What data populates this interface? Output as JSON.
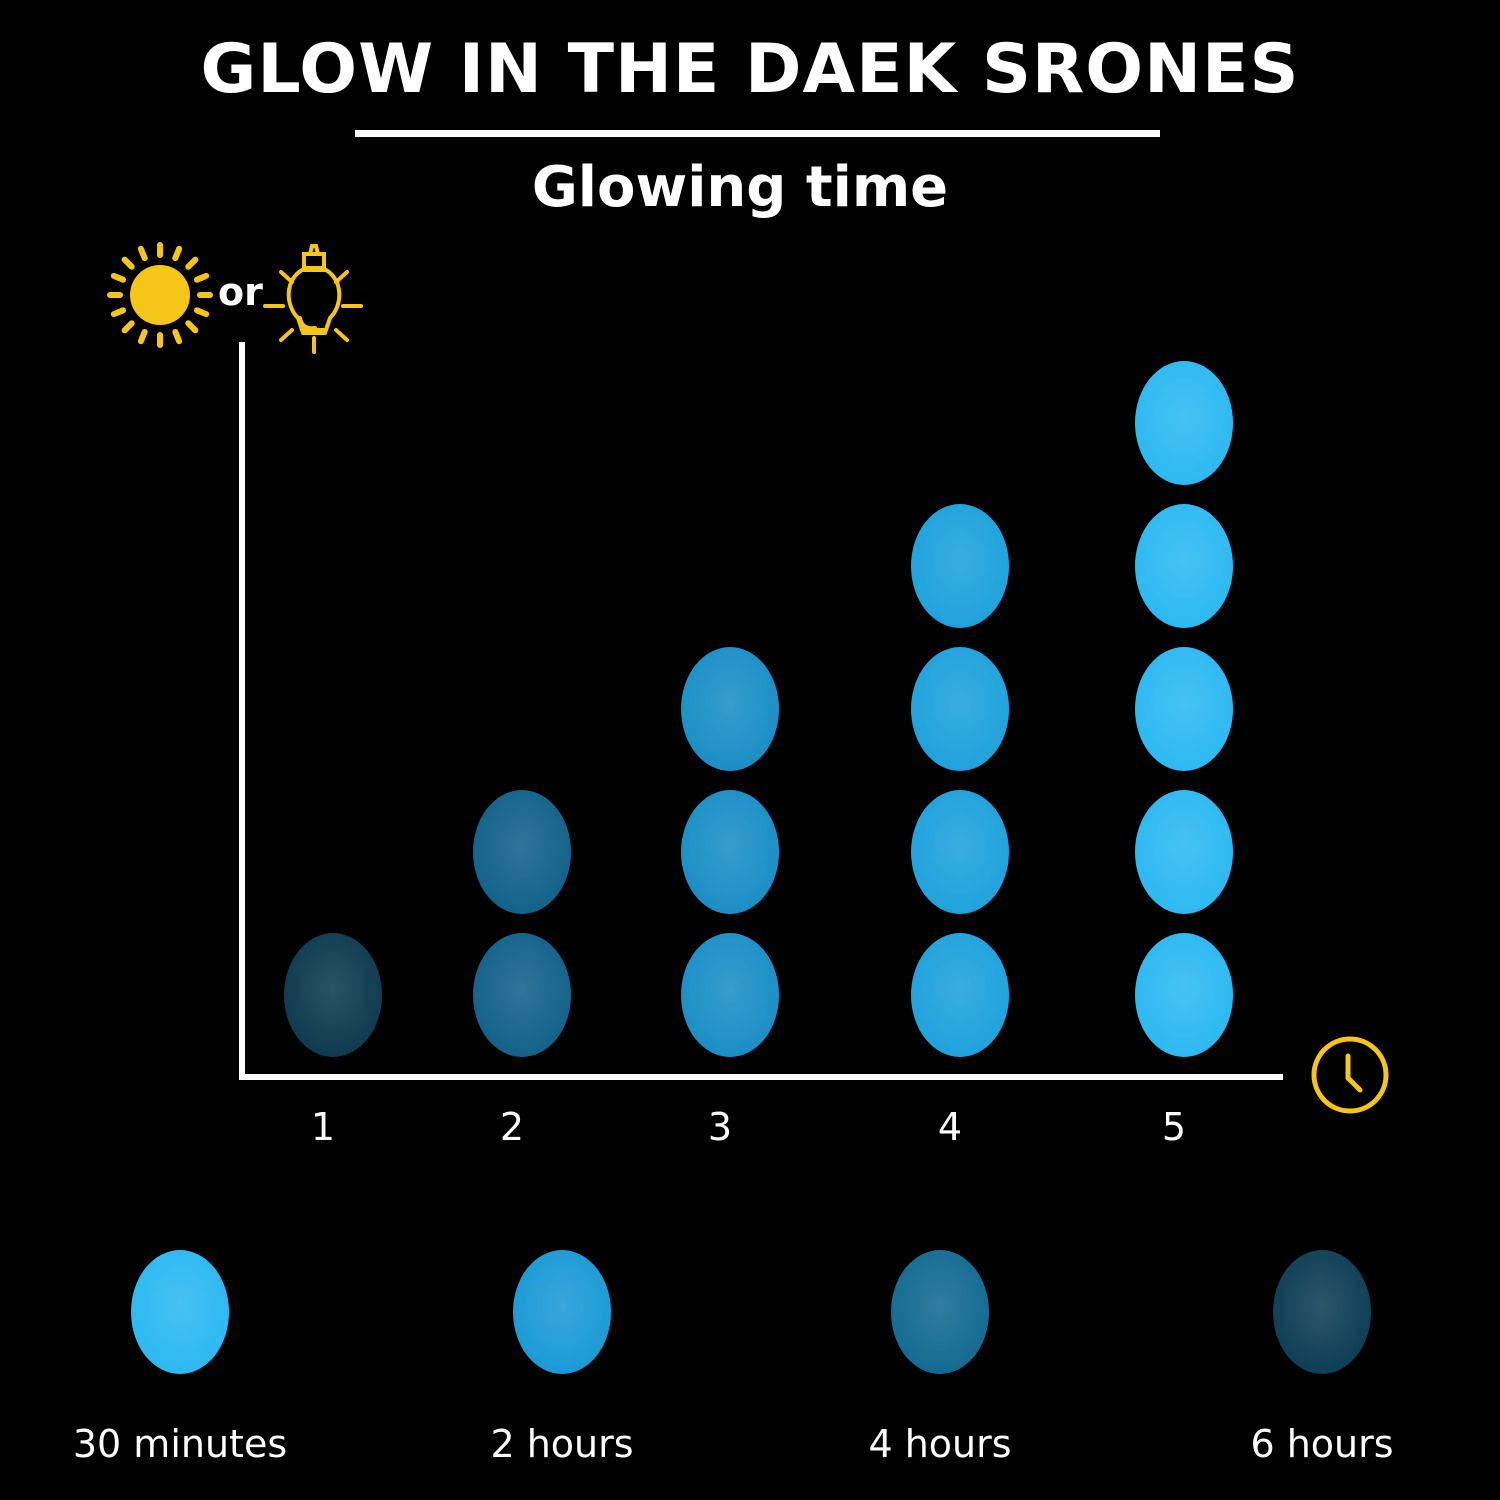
{
  "header": {
    "title": "GLOW IN THE DAEK SRONES",
    "subtitle": "Glowing time",
    "or_text": "or"
  },
  "icons": {
    "y_axis": [
      "sun-icon",
      "light-bulb-icon"
    ],
    "x_axis": "clock-icon",
    "color": "#f5c518"
  },
  "chart_data": {
    "type": "pictograph",
    "title": "Glowing time",
    "categories": [
      "1",
      "2",
      "3",
      "4",
      "5"
    ],
    "values": [
      1,
      2,
      3,
      4,
      5
    ],
    "colors": [
      "#0e3b50",
      "#13628a",
      "#1b8fc6",
      "#1fa2dc",
      "#2db9f1"
    ],
    "xlabel": "",
    "ylabel": ""
  },
  "legend": [
    {
      "label": "30 minutes",
      "color": "#2db9f1"
    },
    {
      "label": "2 hours",
      "color": "#1c9ad6"
    },
    {
      "label": "4 hours",
      "color": "#146b92"
    },
    {
      "label": "6 hours",
      "color": "#0e3f56"
    }
  ]
}
